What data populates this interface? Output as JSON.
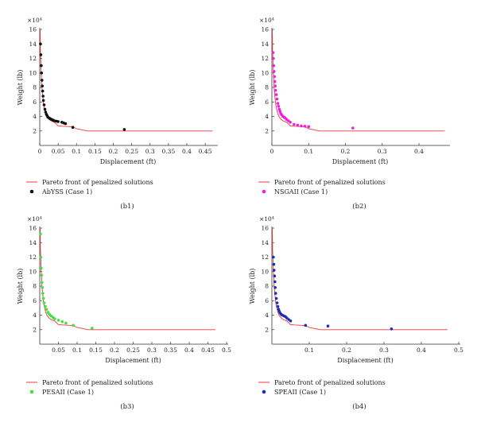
{
  "colors": {
    "pareto": "#e8393c",
    "axis": "#333333"
  },
  "chart_data": [
    {
      "type": "scatter",
      "panel_label": "(b1)",
      "xlabel": "Displacement (ft)",
      "ylabel": "Weight (lb)",
      "y_multiplier": "×10⁴",
      "xlim": [
        0,
        0.48
      ],
      "ylim": [
        0,
        16
      ],
      "x_ticks": [
        "0",
        "0.05",
        "0.1",
        "0.15",
        "0.2",
        "0.25",
        "0.3",
        "0.35",
        "0.4",
        "0.45"
      ],
      "x_tick_values": [
        0,
        0.05,
        0.1,
        0.15,
        0.2,
        0.25,
        0.3,
        0.35,
        0.4,
        0.45
      ],
      "y_ticks": [
        "2",
        "4",
        "6",
        "8",
        "10",
        "12",
        "14",
        "16"
      ],
      "y_tick_values": [
        2,
        4,
        6,
        8,
        10,
        12,
        14,
        16
      ],
      "series": [
        {
          "name": "Pareto front of penalized solutions",
          "kind": "line",
          "color": "#e8393c",
          "x": [
            0.001,
            0.002,
            0.004,
            0.006,
            0.008,
            0.01,
            0.013,
            0.016,
            0.02,
            0.025,
            0.03,
            0.04,
            0.05,
            0.06,
            0.08,
            0.09,
            0.1,
            0.13,
            0.2,
            0.3,
            0.4,
            0.47
          ],
          "y": [
            16,
            13,
            10,
            8,
            6.8,
            5.8,
            5.0,
            4.4,
            3.9,
            3.6,
            3.4,
            3.2,
            2.7,
            2.65,
            2.6,
            2.55,
            2.3,
            2.0,
            2.0,
            2.0,
            2.0,
            2.0
          ]
        },
        {
          "name": "AbYSS (Case 1)",
          "kind": "scatter",
          "color": "#111111",
          "x": [
            0.002,
            0.003,
            0.004,
            0.005,
            0.006,
            0.007,
            0.008,
            0.009,
            0.01,
            0.012,
            0.014,
            0.016,
            0.018,
            0.02,
            0.022,
            0.025,
            0.028,
            0.032,
            0.036,
            0.04,
            0.045,
            0.05,
            0.06,
            0.065,
            0.07,
            0.09,
            0.23
          ],
          "y": [
            14,
            12.5,
            11,
            10,
            9,
            8.2,
            7.5,
            6.8,
            6.2,
            5.6,
            5.0,
            4.6,
            4.3,
            4.1,
            3.9,
            3.8,
            3.7,
            3.6,
            3.5,
            3.4,
            3.35,
            3.3,
            3.2,
            3.1,
            3.0,
            2.5,
            2.2
          ]
        }
      ]
    },
    {
      "type": "scatter",
      "panel_label": "(b2)",
      "xlabel": "Displacement (ft)",
      "ylabel": "Weight (lb)",
      "y_multiplier": "×10⁴",
      "xlim": [
        0,
        0.48
      ],
      "ylim": [
        0,
        16
      ],
      "x_ticks": [
        "0",
        "0.1",
        "0.2",
        "0.3",
        "0.4"
      ],
      "x_tick_values": [
        0,
        0.1,
        0.2,
        0.3,
        0.4
      ],
      "y_ticks": [
        "2",
        "4",
        "6",
        "8",
        "10",
        "12",
        "14",
        "16"
      ],
      "y_tick_values": [
        2,
        4,
        6,
        8,
        10,
        12,
        14,
        16
      ],
      "series": [
        {
          "name": "Pareto front of penalized solutions",
          "kind": "line",
          "color": "#e8393c",
          "x": [
            0.001,
            0.002,
            0.004,
            0.006,
            0.008,
            0.01,
            0.013,
            0.016,
            0.02,
            0.025,
            0.03,
            0.04,
            0.05,
            0.06,
            0.08,
            0.09,
            0.1,
            0.13,
            0.2,
            0.3,
            0.4,
            0.47
          ],
          "y": [
            16,
            13,
            10,
            8,
            6.8,
            5.8,
            5.0,
            4.4,
            3.9,
            3.6,
            3.4,
            3.2,
            2.7,
            2.65,
            2.6,
            2.55,
            2.3,
            2.0,
            2.0,
            2.0,
            2.0,
            2.0
          ]
        },
        {
          "name": "NSGAII (Case 1)",
          "kind": "scatter",
          "color": "#ee22dd",
          "x": [
            0.003,
            0.004,
            0.005,
            0.006,
            0.007,
            0.008,
            0.009,
            0.01,
            0.012,
            0.014,
            0.016,
            0.018,
            0.02,
            0.022,
            0.024,
            0.027,
            0.03,
            0.033,
            0.036,
            0.04,
            0.045,
            0.05,
            0.06,
            0.07,
            0.08,
            0.09,
            0.1,
            0.22
          ],
          "y": [
            12.8,
            12,
            11,
            10.2,
            9.5,
            8.8,
            8.2,
            7.6,
            7.0,
            6.4,
            5.8,
            5.4,
            5.0,
            4.7,
            4.4,
            4.2,
            4.0,
            3.9,
            3.8,
            3.6,
            3.4,
            3.2,
            2.9,
            2.8,
            2.7,
            2.65,
            2.6,
            2.4
          ]
        }
      ]
    },
    {
      "type": "scatter",
      "panel_label": "(b3)",
      "xlabel": "Displacement (ft)",
      "ylabel": "Weight (lb)",
      "y_multiplier": "×10⁴",
      "xlim": [
        0,
        0.5
      ],
      "ylim": [
        0,
        16
      ],
      "x_ticks": [
        "0.05",
        "0.1",
        "0.15",
        "0.2",
        "0.25",
        "0.3",
        "0.35",
        "0.4",
        "0.45",
        "0.5"
      ],
      "x_tick_values": [
        0.05,
        0.1,
        0.15,
        0.2,
        0.25,
        0.3,
        0.35,
        0.4,
        0.45,
        0.5
      ],
      "y_ticks": [
        "2",
        "4",
        "6",
        "8",
        "10",
        "12",
        "14",
        "16"
      ],
      "y_tick_values": [
        2,
        4,
        6,
        8,
        10,
        12,
        14,
        16
      ],
      "series": [
        {
          "name": "Pareto front of penalized solutions",
          "kind": "line",
          "color": "#e8393c",
          "x": [
            0.001,
            0.002,
            0.004,
            0.006,
            0.008,
            0.01,
            0.013,
            0.016,
            0.02,
            0.025,
            0.03,
            0.04,
            0.05,
            0.06,
            0.08,
            0.09,
            0.1,
            0.13,
            0.2,
            0.3,
            0.4,
            0.47
          ],
          "y": [
            16,
            13,
            10,
            8,
            6.8,
            5.8,
            5.0,
            4.4,
            3.9,
            3.6,
            3.4,
            3.2,
            2.7,
            2.65,
            2.6,
            2.55,
            2.3,
            2.0,
            2.0,
            2.0,
            2.0,
            2.0
          ]
        },
        {
          "name": "PESAII (Case 1)",
          "kind": "scatter",
          "color": "#44dd44",
          "x": [
            0.002,
            0.003,
            0.004,
            0.005,
            0.006,
            0.007,
            0.008,
            0.01,
            0.012,
            0.015,
            0.018,
            0.022,
            0.026,
            0.03,
            0.035,
            0.04,
            0.05,
            0.06,
            0.07,
            0.09,
            0.14
          ],
          "y": [
            15.2,
            12,
            10.5,
            9.5,
            8.5,
            7.8,
            7.0,
            6.3,
            5.7,
            5.2,
            4.8,
            4.4,
            4.1,
            3.9,
            3.7,
            3.5,
            3.3,
            3.1,
            2.9,
            2.6,
            2.2
          ]
        }
      ]
    },
    {
      "type": "scatter",
      "panel_label": "(b4)",
      "xlabel": "Displacement (ft)",
      "ylabel": "Weight (lb)",
      "y_multiplier": "×10⁴",
      "xlim": [
        0,
        0.5
      ],
      "ylim": [
        0,
        16
      ],
      "x_ticks": [
        "0.1",
        "0.2",
        "0.3",
        "0.4",
        "0.5"
      ],
      "x_tick_values": [
        0.1,
        0.2,
        0.3,
        0.4,
        0.5
      ],
      "y_ticks": [
        "2",
        "4",
        "6",
        "8",
        "10",
        "12",
        "14",
        "16"
      ],
      "y_tick_values": [
        2,
        4,
        6,
        8,
        10,
        12,
        14,
        16
      ],
      "series": [
        {
          "name": "Pareto front of penalized solutions",
          "kind": "line",
          "color": "#e8393c",
          "x": [
            0.001,
            0.002,
            0.004,
            0.006,
            0.008,
            0.01,
            0.013,
            0.016,
            0.02,
            0.025,
            0.03,
            0.04,
            0.05,
            0.06,
            0.08,
            0.09,
            0.1,
            0.13,
            0.2,
            0.3,
            0.4,
            0.47
          ],
          "y": [
            16,
            13,
            10,
            8,
            6.8,
            5.8,
            5.0,
            4.4,
            3.9,
            3.6,
            3.4,
            3.2,
            2.7,
            2.65,
            2.6,
            2.55,
            2.3,
            2.0,
            2.0,
            2.0,
            2.0,
            2.0
          ]
        },
        {
          "name": "SPEAII (Case 1)",
          "kind": "scatter",
          "color": "#1a2fb0",
          "x": [
            0.004,
            0.005,
            0.006,
            0.007,
            0.008,
            0.009,
            0.01,
            0.012,
            0.014,
            0.016,
            0.018,
            0.02,
            0.022,
            0.025,
            0.028,
            0.032,
            0.036,
            0.04,
            0.045,
            0.05,
            0.09,
            0.15,
            0.32
          ],
          "y": [
            12,
            11,
            10.2,
            9.4,
            8.6,
            7.8,
            7.0,
            6.3,
            5.7,
            5.2,
            4.8,
            4.5,
            4.3,
            4.1,
            4.0,
            3.9,
            3.8,
            3.6,
            3.4,
            3.2,
            2.6,
            2.5,
            2.1
          ]
        }
      ]
    }
  ]
}
